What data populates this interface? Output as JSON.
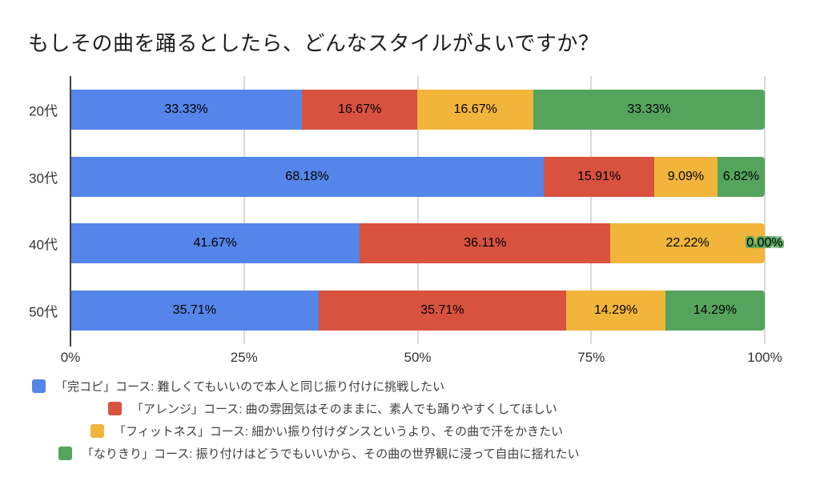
{
  "title": "もしその曲を踊るとしたら、どんなスタイルがよいですか？",
  "chart_data": {
    "type": "bar",
    "subtype": "stacked-100-horizontal",
    "title": "もしその曲を踊るとしたら、どんなスタイルがよいですか？",
    "categories": [
      "20代",
      "30代",
      "40代",
      "50代"
    ],
    "series": [
      {
        "name": "「完コピ」コース: 難しくてもいいので本人と同じ振り付けに挑戦したい",
        "color": "#5585E8",
        "values": [
          33.33,
          68.18,
          41.67,
          35.71
        ]
      },
      {
        "name": "「アレンジ」コース: 曲の雰囲気はそのままに、素人でも踊りやすくしてほしい",
        "color": "#D8523F",
        "values": [
          16.67,
          15.91,
          36.11,
          35.71
        ]
      },
      {
        "name": "「フィットネス」コース: 細かい振り付けダンスというより、その曲で汗をかきたい",
        "color": "#F1B53B",
        "values": [
          16.67,
          9.09,
          22.22,
          14.29
        ]
      },
      {
        "name": "「なりきり」コース: 振り付けはどうでもいいから、その曲の世界観に浸って自由に揺れたい",
        "color": "#55A45E",
        "values": [
          33.33,
          6.82,
          0.0,
          14.29
        ]
      }
    ],
    "data_labels": [
      [
        "33.33%",
        "16.67%",
        "16.67%",
        "33.33%"
      ],
      [
        "68.18%",
        "15.91%",
        "9.09%",
        "6.82%"
      ],
      [
        "41.67%",
        "36.11%",
        "22.22%",
        "0.00%"
      ],
      [
        "35.71%",
        "35.71%",
        "14.29%",
        "14.29%"
      ]
    ],
    "xticks": [
      "0%",
      "25%",
      "50%",
      "75%",
      "100%"
    ],
    "xlim": [
      0,
      100
    ],
    "grid": true,
    "gridline_color": "#d9d9d9",
    "axis_line_color": "#424242",
    "legend_position": "bottom"
  }
}
